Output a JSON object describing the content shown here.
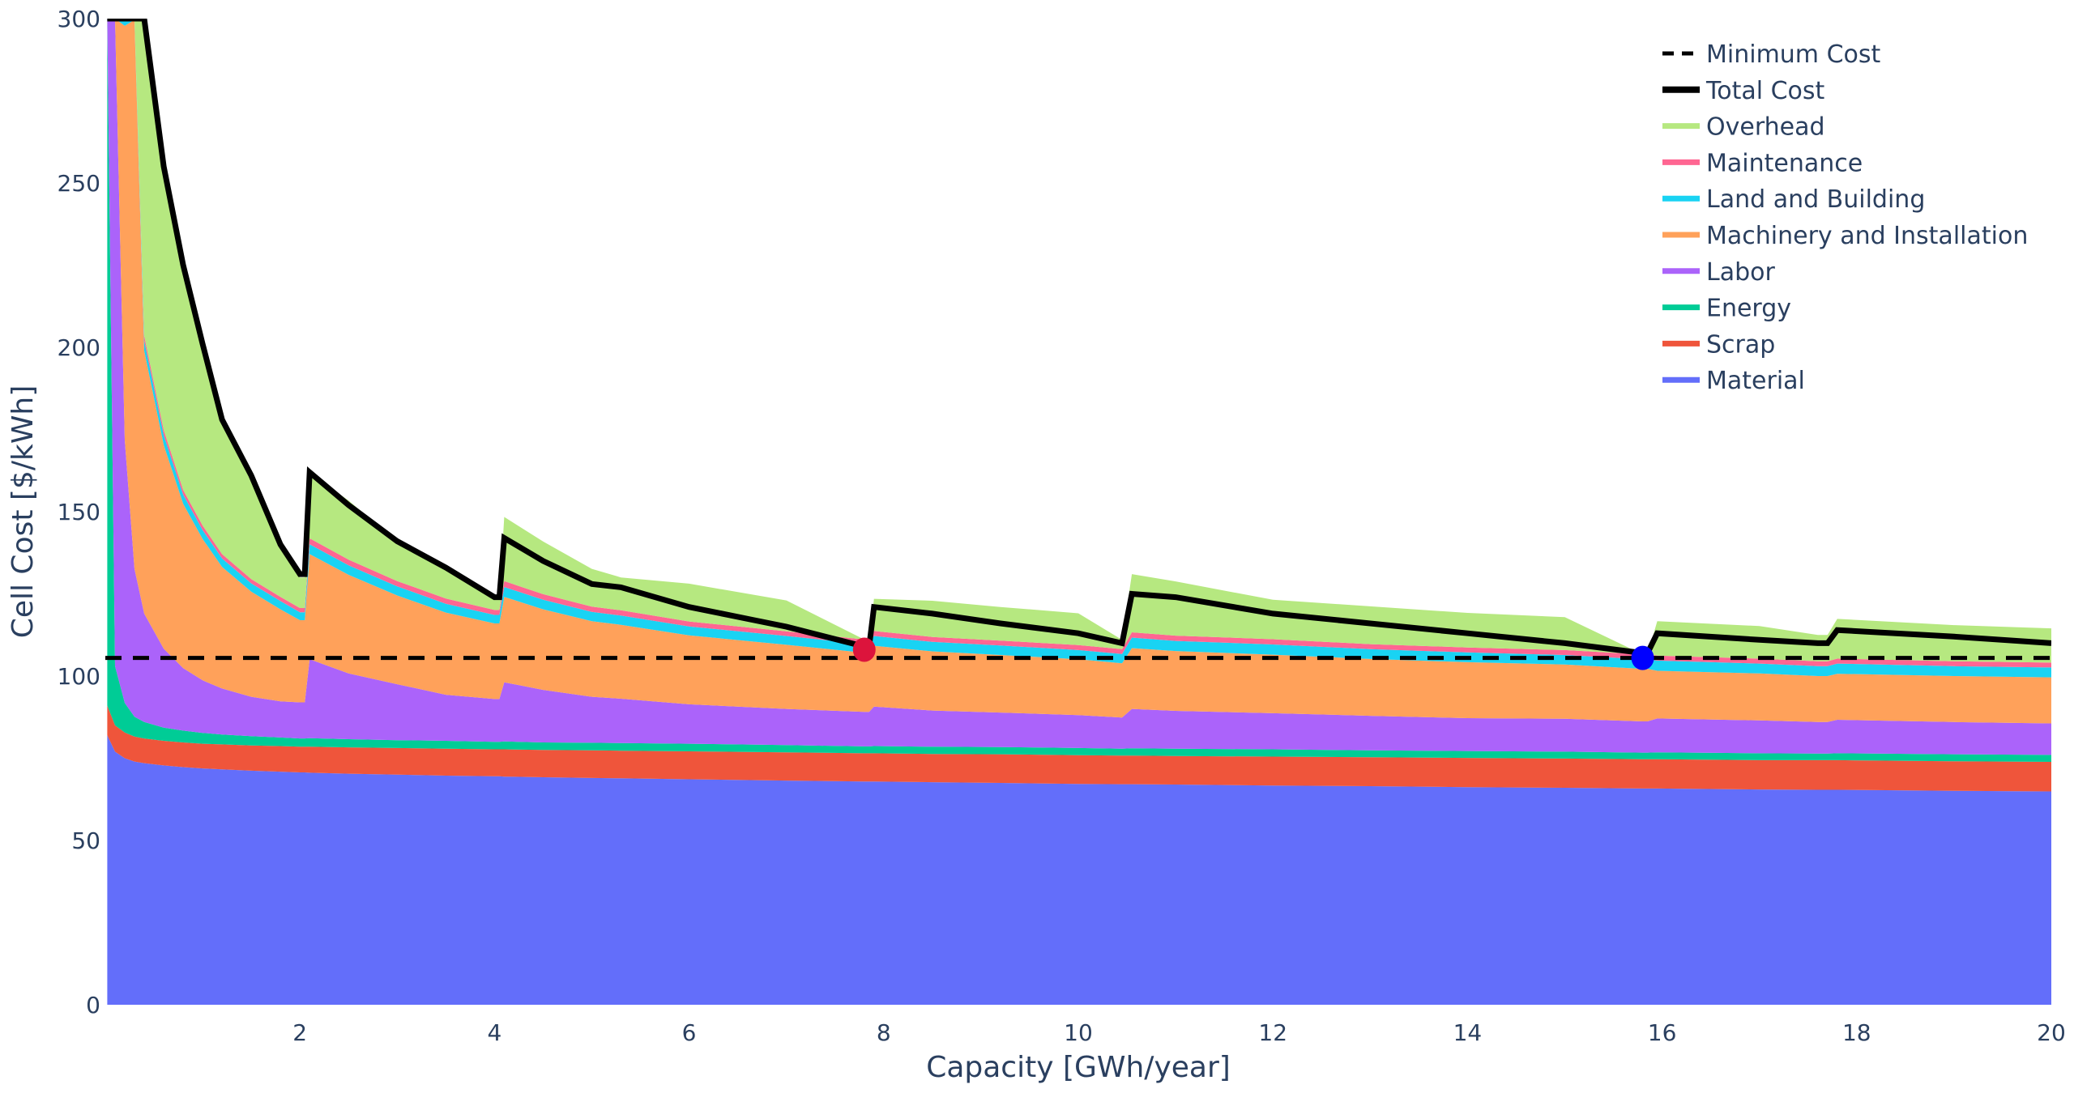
{
  "chart_data": {
    "type": "area",
    "title": "",
    "xlabel": "Capacity [GWh/year]",
    "ylabel": "Cell Cost [$/kWh]",
    "xlim": [
      0,
      20
    ],
    "ylim": [
      0,
      300
    ],
    "xticks": [
      2,
      4,
      6,
      8,
      10,
      12,
      14,
      16,
      18,
      20
    ],
    "yticks": [
      0,
      50,
      100,
      150,
      200,
      250,
      300
    ],
    "grid": false,
    "legend_position": "top-right",
    "stacked": true,
    "x": [
      0.02,
      0.1,
      0.2,
      0.3,
      0.4,
      0.6,
      0.8,
      1.0,
      1.2,
      1.5,
      1.8,
      2.0,
      2.05,
      2.1,
      2.5,
      3.0,
      3.5,
      4.0,
      4.05,
      4.1,
      4.5,
      5.0,
      5.3,
      6.0,
      7.0,
      7.8,
      7.85,
      7.9,
      8.5,
      9.2,
      10.0,
      10.45,
      10.55,
      11.0,
      12.0,
      13.0,
      14.0,
      15.0,
      15.8,
      15.85,
      15.95,
      17.0,
      17.6,
      17.7,
      17.8,
      19.0,
      20.0
    ],
    "series": [
      {
        "name": "Material",
        "color": "#636efa",
        "values": [
          82,
          77,
          75,
          74,
          73.5,
          72.8,
          72.3,
          71.9,
          71.6,
          71.2,
          70.9,
          70.7,
          70.7,
          70.6,
          70.3,
          70.0,
          69.7,
          69.5,
          69.5,
          69.4,
          69.2,
          69.0,
          68.9,
          68.6,
          68.2,
          67.9,
          67.9,
          67.9,
          67.7,
          67.5,
          67.2,
          67.1,
          67.1,
          67.0,
          66.7,
          66.5,
          66.2,
          66.0,
          65.8,
          65.8,
          65.8,
          65.5,
          65.4,
          65.4,
          65.4,
          65.1,
          64.9
        ]
      },
      {
        "name": "Scrap",
        "color": "#ef553b",
        "values": [
          9,
          8,
          7.8,
          7.6,
          7.5,
          7.5,
          7.5,
          7.5,
          7.6,
          7.7,
          7.8,
          7.8,
          7.8,
          7.9,
          8.0,
          8.1,
          8.2,
          8.2,
          8.2,
          8.3,
          8.3,
          8.4,
          8.4,
          8.5,
          8.6,
          8.6,
          8.6,
          8.6,
          8.6,
          8.7,
          8.7,
          8.7,
          8.7,
          8.7,
          8.8,
          8.8,
          8.9,
          8.9,
          8.9,
          8.9,
          8.9,
          8.9,
          9.0,
          9.0,
          9.0,
          9.0,
          9.0
        ]
      },
      {
        "name": "Energy",
        "color": "#00cc96",
        "values": [
          209,
          18,
          9,
          6,
          5,
          4,
          3.6,
          3.3,
          3.0,
          2.8,
          2.6,
          2.5,
          2.5,
          2.6,
          2.5,
          2.4,
          2.4,
          2.3,
          2.3,
          2.4,
          2.3,
          2.3,
          2.3,
          2.3,
          2.2,
          2.1,
          2.1,
          2.2,
          2.2,
          2.2,
          2.2,
          2.1,
          2.2,
          2.2,
          2.2,
          2.1,
          2.1,
          2.1,
          2.0,
          2.0,
          2.1,
          2.1,
          2.0,
          2.0,
          2.1,
          2.1,
          2.1
        ]
      },
      {
        "name": "Labor",
        "color": "#ab63fa",
        "values": [
          0,
          197,
          80,
          45,
          33,
          24,
          19,
          16,
          14,
          12,
          11,
          11,
          11,
          24,
          20,
          17,
          14,
          13,
          13,
          18,
          16,
          14,
          13.5,
          12,
          11,
          10.5,
          10.5,
          12,
          11,
          10.5,
          10,
          9.5,
          12,
          11.5,
          11,
          10.5,
          10,
          10,
          9.5,
          9.5,
          10.3,
          10,
          9.6,
          9.6,
          10.2,
          9.8,
          9.6
        ]
      },
      {
        "name": "Machinery and Installation",
        "color": "#ffa15a",
        "values": [
          0,
          0,
          126,
          167,
          80,
          62,
          50,
          43,
          37,
          32,
          28,
          25,
          25,
          32,
          30,
          27,
          25,
          23,
          23,
          26,
          24.5,
          23,
          22.5,
          21,
          19.5,
          18,
          18,
          18.5,
          18,
          17.5,
          17,
          16.5,
          18.5,
          18.2,
          17.8,
          17.3,
          17,
          16.5,
          16,
          16,
          14.5,
          14.3,
          14,
          14,
          14,
          14,
          14
        ]
      },
      {
        "name": "Land and Building",
        "color": "#19d3f3",
        "values": [
          0,
          0,
          2,
          0.8,
          3,
          3,
          2.8,
          2.7,
          2.6,
          2.5,
          2.5,
          2.4,
          2.4,
          3.0,
          2.9,
          2.8,
          2.7,
          2.6,
          2.6,
          3.0,
          2.9,
          2.8,
          2.8,
          2.7,
          2.7,
          2.6,
          2.6,
          3.0,
          2.9,
          2.9,
          2.8,
          2.8,
          3.2,
          3.1,
          3.1,
          3.0,
          3.0,
          2.9,
          2.9,
          2.9,
          3.1,
          3.0,
          3.0,
          3.0,
          3.1,
          3.0,
          3.0
        ]
      },
      {
        "name": "Maintenance",
        "color": "#ff6692",
        "values": [
          0,
          0,
          0,
          0.6,
          1.5,
          1.5,
          1.4,
          1.4,
          1.3,
          1.3,
          1.3,
          1.3,
          1.3,
          1.8,
          1.7,
          1.6,
          1.6,
          1.5,
          1.5,
          1.8,
          1.7,
          1.6,
          1.6,
          1.5,
          1.4,
          1.4,
          1.4,
          1.5,
          1.5,
          1.5,
          1.5,
          1.5,
          1.6,
          1.6,
          1.6,
          1.5,
          1.5,
          1.5,
          1.5,
          1.5,
          1.5,
          1.5,
          1.5,
          1.5,
          1.5,
          1.5,
          1.5
        ]
      },
      {
        "name": "Overhead",
        "color": "#b6e880",
        "values": [
          0,
          0,
          0,
          0,
          97,
          80,
          68,
          55,
          41,
          31.5,
          16,
          9.3,
          9.3,
          20,
          18,
          12,
          10,
          3.9,
          3.9,
          19.5,
          16,
          11.5,
          10,
          11.5,
          9.4,
          0,
          0,
          9.8,
          11,
          10.2,
          9.7,
          2.8,
          17.7,
          16.5,
          12,
          11.5,
          10.5,
          10,
          0,
          0,
          10.5,
          9.9,
          8.0,
          8.0,
          12.1,
          11.0,
          10.4
        ]
      },
      {
        "name": "Total Cost",
        "color": "#000000",
        "type": "line",
        "values": [
          300,
          300,
          300,
          300,
          300,
          255,
          225,
          201,
          178,
          161,
          140,
          131,
          131,
          162,
          152,
          141,
          133,
          124,
          124,
          142,
          135,
          128,
          127,
          121,
          115,
          109,
          109,
          121,
          119,
          116,
          113,
          110,
          125,
          124,
          119,
          116,
          113,
          110,
          107,
          107,
          113,
          111,
          110,
          110,
          114,
          112,
          110
        ]
      },
      {
        "name": "Minimum Cost",
        "color": "#000000",
        "type": "dashed-line",
        "value": 105.5
      }
    ],
    "markers": [
      {
        "x": 7.8,
        "y": 108,
        "color": "#dc143c"
      },
      {
        "x": 15.8,
        "y": 105.5,
        "color": "#0000ff"
      }
    ],
    "legend": [
      "Minimum Cost",
      "Total Cost",
      "Overhead",
      "Maintenance",
      "Land and Building",
      "Machinery and Installation",
      "Labor",
      "Energy",
      "Scrap",
      "Material"
    ]
  },
  "axes": {
    "x_title": "Capacity [GWh/year]",
    "y_title": "Cell Cost [$/kWh]"
  },
  "legend": {
    "items": [
      {
        "label": "Minimum Cost",
        "color": "#000000",
        "style": "dash"
      },
      {
        "label": "Total Cost",
        "color": "#000000",
        "style": "solid"
      },
      {
        "label": "Overhead",
        "color": "#b6e880",
        "style": "solid"
      },
      {
        "label": "Maintenance",
        "color": "#ff6692",
        "style": "solid"
      },
      {
        "label": "Land and Building",
        "color": "#19d3f3",
        "style": "solid"
      },
      {
        "label": "Machinery and Installation",
        "color": "#ffa15a",
        "style": "solid"
      },
      {
        "label": "Labor",
        "color": "#ab63fa",
        "style": "solid"
      },
      {
        "label": "Energy",
        "color": "#00cc96",
        "style": "solid"
      },
      {
        "label": "Scrap",
        "color": "#ef553b",
        "style": "solid"
      },
      {
        "label": "Material",
        "color": "#636efa",
        "style": "solid"
      }
    ]
  }
}
